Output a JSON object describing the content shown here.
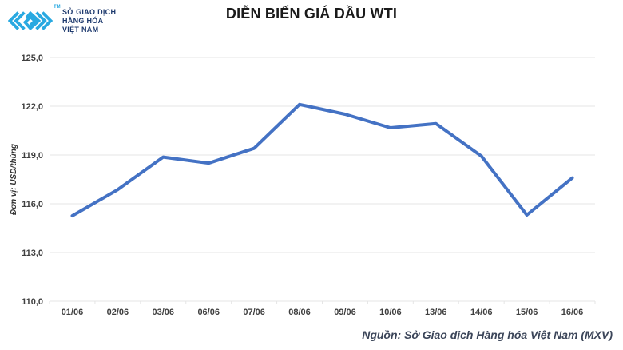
{
  "logo": {
    "line1": "SỞ GIAO DỊCH",
    "line2": "HÀNG HÓA",
    "line3": "VIỆT NAM",
    "tm": "TM",
    "icon_color": "#29a9e1",
    "text_color": "#1e3a6e"
  },
  "source": "Nguồn: Sở Giao dịch Hàng hóa Việt Nam (MXV)",
  "chart_data": {
    "type": "line",
    "title": "DIỄN BIẾN GIÁ DẦU WTI",
    "categories": [
      "01/06",
      "02/06",
      "03/06",
      "06/06",
      "07/06",
      "08/06",
      "09/06",
      "10/06",
      "13/06",
      "14/06",
      "15/06",
      "16/06"
    ],
    "values": [
      115.26,
      116.87,
      118.87,
      118.5,
      119.41,
      122.11,
      121.51,
      120.67,
      120.93,
      118.93,
      115.31,
      117.59
    ],
    "ylabel": "Đơn vị: USD/thùng",
    "xlabel": "",
    "ylim": [
      110,
      125
    ],
    "ytick_step": 3,
    "ytick_labels": [
      "110,0",
      "113,0",
      "116,0",
      "119,0",
      "122,0",
      "125,0"
    ],
    "grid": true,
    "legend": false,
    "line_color": "#4472c4",
    "grid_color": "#e5e5e5"
  }
}
